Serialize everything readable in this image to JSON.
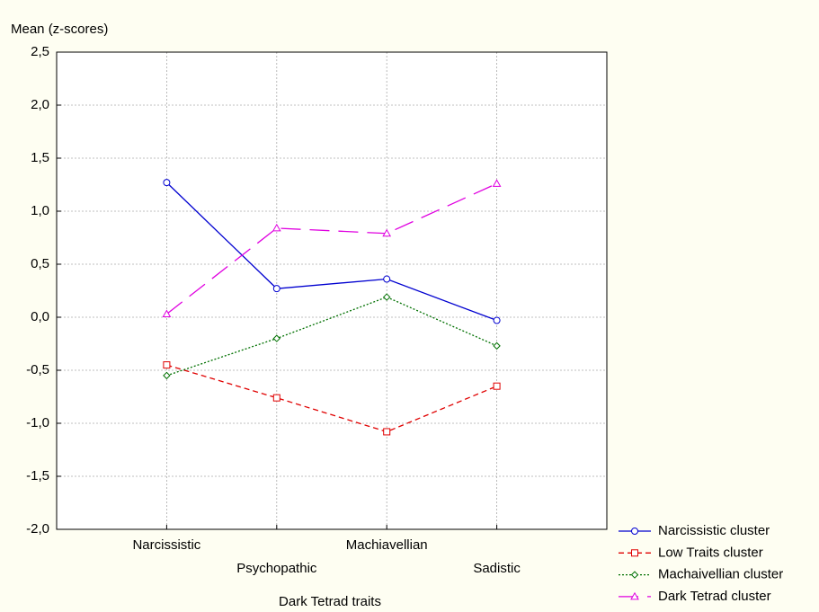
{
  "chart_data": {
    "type": "line",
    "y_label": "Mean (z-scores)",
    "x_label": "Dark Tetrad traits",
    "categories": [
      "Narcissistic",
      "Psychopathic",
      "Machiavellian",
      "Sadistic"
    ],
    "series": [
      {
        "name": "Narcissistic cluster",
        "color": "#0000d0",
        "marker": "circle",
        "dash": "solid",
        "values": [
          1.27,
          0.27,
          0.36,
          -0.03
        ]
      },
      {
        "name": "Low  Traits cluster",
        "color": "#e00000",
        "marker": "square",
        "dash": "dashed",
        "values": [
          -0.45,
          -0.76,
          -1.08,
          -0.65
        ]
      },
      {
        "name": "Machaivellian cluster",
        "color": "#007000",
        "marker": "diamond",
        "dash": "dotted",
        "values": [
          -0.55,
          -0.2,
          0.19,
          -0.27
        ]
      },
      {
        "name": "Dark Tetrad cluster",
        "color": "#e000e0",
        "marker": "triangle",
        "dash": "longdash",
        "values": [
          0.03,
          0.84,
          0.79,
          1.26
        ]
      }
    ],
    "ylim": [
      -2.0,
      2.5
    ],
    "yticks": [
      {
        "value": 2.5,
        "label": "2,5"
      },
      {
        "value": 2.0,
        "label": "2,0"
      },
      {
        "value": 1.5,
        "label": "1,5"
      },
      {
        "value": 1.0,
        "label": "1,0"
      },
      {
        "value": 0.5,
        "label": "0,5"
      },
      {
        "value": 0,
        "label": "0,0"
      },
      {
        "value": -0.5,
        "label": "-0,5"
      },
      {
        "value": -1.0,
        "label": "-1,0"
      },
      {
        "value": -1.5,
        "label": "-1,5"
      },
      {
        "value": -2.0,
        "label": "-2,0"
      }
    ],
    "grid": true,
    "legend": "bottom-right"
  }
}
